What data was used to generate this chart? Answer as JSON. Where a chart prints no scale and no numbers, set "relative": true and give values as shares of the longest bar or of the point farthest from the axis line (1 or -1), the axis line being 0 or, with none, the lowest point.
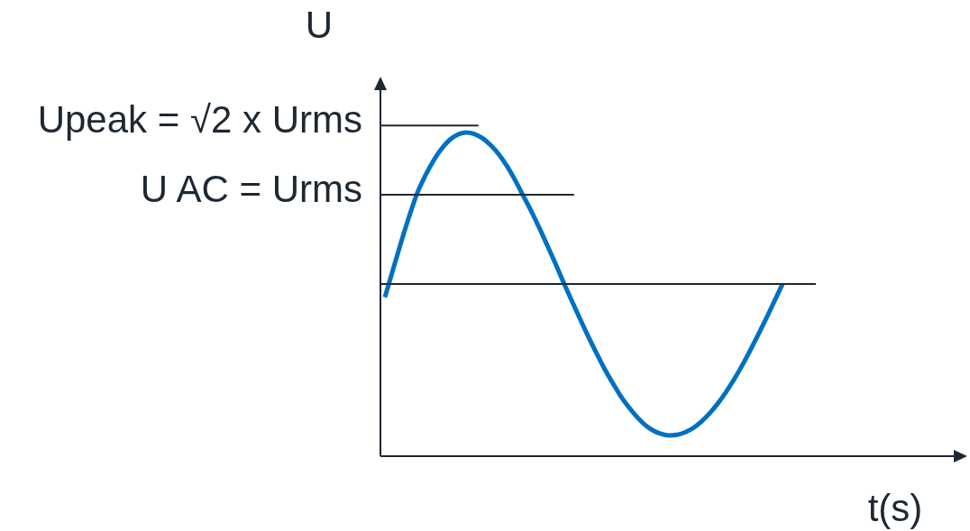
{
  "chart_data": {
    "type": "line",
    "xlabel": "t(s)",
    "ylabel": "U",
    "relative": true,
    "marker": "none",
    "categories": [
      null,
      null,
      null,
      null,
      null,
      null,
      null,
      null,
      null,
      null,
      null,
      null,
      null,
      null,
      null,
      null,
      null,
      null,
      null,
      null,
      null,
      null,
      null,
      null,
      null,
      null,
      null,
      null,
      null,
      null,
      null,
      null,
      null,
      null,
      null,
      null,
      null,
      null,
      null,
      null,
      null,
      null,
      null,
      null,
      null,
      null,
      null,
      null,
      null,
      null
    ],
    "series": [
      {
        "color": "#0070c0",
        "values": [
          0.491,
          0.577,
          0.662,
          0.742,
          0.814,
          0.868,
          0.914,
          0.951,
          0.978,
          0.994,
          1.0,
          0.996,
          0.983,
          0.962,
          0.934,
          0.898,
          0.855,
          0.807,
          0.759,
          0.707,
          0.652,
          0.596,
          0.538,
          0.482,
          0.427,
          0.373,
          0.322,
          0.273,
          0.229,
          0.188,
          0.153,
          0.123,
          0.098,
          0.08,
          0.069,
          0.064,
          0.066,
          0.074,
          0.087,
          0.107,
          0.132,
          0.162,
          0.197,
          0.236,
          0.279,
          0.326,
          0.375,
          0.426,
          0.479,
          0.532
        ]
      }
    ],
    "ref_lines": [
      {
        "axis": "y",
        "value": 1.022,
        "label": "Upeak = √2 x Urms",
        "color": "#1e2832"
      },
      {
        "axis": "y",
        "value": 0.808,
        "label": "U AC = Urms",
        "color": "#1e2832"
      },
      {
        "axis": "y",
        "value": 0.532,
        "color": "#1e2832"
      }
    ]
  }
}
